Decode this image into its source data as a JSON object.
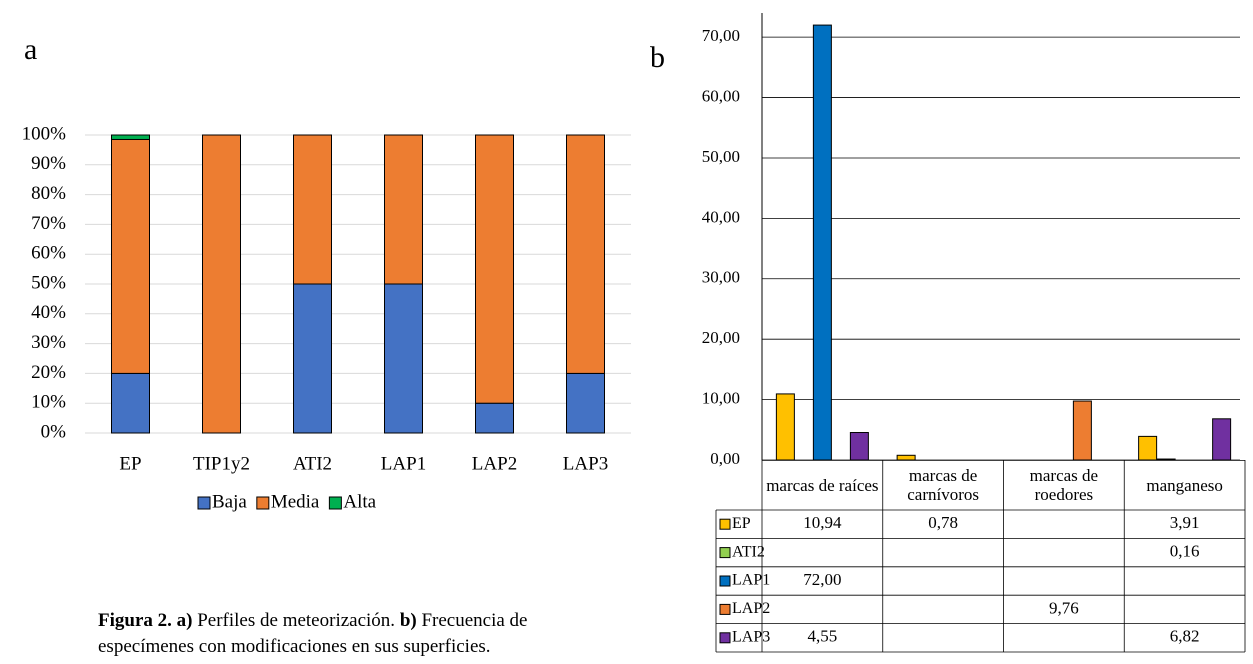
{
  "chart_data": [
    {
      "type": "bar",
      "stacked": true,
      "panel_label": "a",
      "categories": [
        "EP",
        "TIP1y2",
        "ATI2",
        "LAP1",
        "LAP2",
        "LAP3"
      ],
      "series": [
        {
          "name": "Baja",
          "color": "#4472c4",
          "values": [
            20,
            0,
            50,
            50,
            10,
            20
          ]
        },
        {
          "name": "Media",
          "color": "#ed7d31",
          "values": [
            78.5,
            100,
            50,
            50,
            90,
            80
          ]
        },
        {
          "name": "Alta",
          "color": "#00b050",
          "values": [
            1.5,
            0,
            0,
            0,
            0,
            0
          ]
        }
      ],
      "ylim": [
        0,
        100
      ],
      "yticks": [
        {
          "value": 0,
          "label": "0%"
        },
        {
          "value": 10,
          "label": "10%"
        },
        {
          "value": 20,
          "label": "20%"
        },
        {
          "value": 30,
          "label": "30%"
        },
        {
          "value": 40,
          "label": "40%"
        },
        {
          "value": 50,
          "label": "50%"
        },
        {
          "value": 60,
          "label": "60%"
        },
        {
          "value": 70,
          "label": "70%"
        },
        {
          "value": 80,
          "label": "80%"
        },
        {
          "value": 90,
          "label": "90%"
        },
        {
          "value": 100,
          "label": "100%"
        }
      ],
      "grid": true,
      "legend": "bottom"
    },
    {
      "type": "bar",
      "stacked": false,
      "panel_label": "b",
      "data_table": true,
      "categories": [
        "marcas de raíces",
        "marcas de carnívoros",
        "marcas de roedores",
        "manganeso"
      ],
      "series": [
        {
          "name": "EP",
          "color": "#ffc000",
          "values": [
            10.94,
            0.78,
            null,
            3.91
          ],
          "value_labels": [
            "10,94",
            "0,78",
            null,
            "3,91"
          ]
        },
        {
          "name": "ATI2",
          "color": "#92d050",
          "values": [
            null,
            null,
            null,
            0.16
          ],
          "value_labels": [
            null,
            null,
            null,
            "0,16"
          ]
        },
        {
          "name": "LAP1",
          "color": "#0070c0",
          "values": [
            72.0,
            null,
            null,
            null
          ],
          "value_labels": [
            "72,00",
            null,
            null,
            null
          ]
        },
        {
          "name": "LAP2",
          "color": "#ed7d31",
          "values": [
            null,
            null,
            9.76,
            null
          ],
          "value_labels": [
            null,
            null,
            "9,76",
            null
          ]
        },
        {
          "name": "LAP3",
          "color": "#7030a0",
          "values": [
            4.55,
            null,
            null,
            6.82
          ],
          "value_labels": [
            "4,55",
            null,
            null,
            "6,82"
          ]
        }
      ],
      "ylim": [
        0,
        74
      ],
      "yticks": [
        {
          "value": 0,
          "label": "0,00"
        },
        {
          "value": 10,
          "label": "10,00"
        },
        {
          "value": 20,
          "label": "20,00"
        },
        {
          "value": 30,
          "label": "30,00"
        },
        {
          "value": 40,
          "label": "40,00"
        },
        {
          "value": 50,
          "label": "50,00"
        },
        {
          "value": 60,
          "label": "60,00"
        },
        {
          "value": 70,
          "label": "70,00"
        }
      ],
      "grid": true
    }
  ],
  "caption": [
    [
      {
        "text": "Figura 2.",
        "bold": true
      },
      {
        "text": " a)",
        "bold": true
      },
      {
        "text": " Perfiles de meteorización. ",
        "bold": false
      },
      {
        "text": "b)",
        "bold": true
      },
      {
        "text": " Frecuencia de",
        "bold": false
      }
    ],
    [
      {
        "text": "especímenes con modificaciones en sus superficies.",
        "bold": false
      }
    ]
  ]
}
